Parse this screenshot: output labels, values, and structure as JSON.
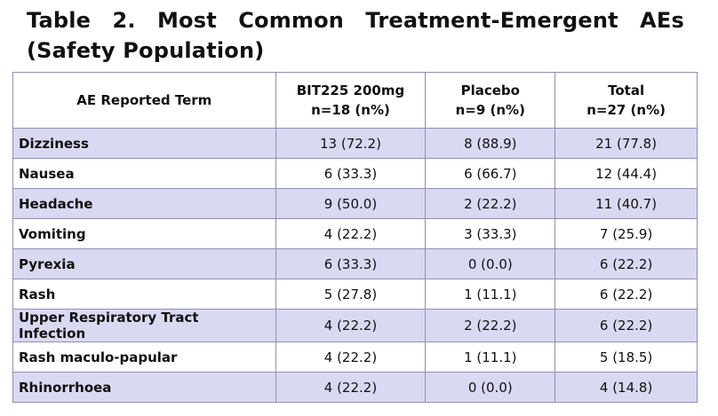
{
  "title": "Table 2.  Most Common Treatment-Emergent AEs (Safety Population)",
  "table": {
    "headers": [
      {
        "line1": "AE Reported Term",
        "line2": ""
      },
      {
        "line1": "BIT225 200mg",
        "line2": "n=18 (n%)"
      },
      {
        "line1": "Placebo",
        "line2": "n=9 (n%)"
      },
      {
        "line1": "Total",
        "line2": "n=27 (n%)"
      }
    ],
    "rows": [
      {
        "term": "Dizziness",
        "bit225": "13 (72.2)",
        "placebo": "8 (88.9)",
        "total": "21 (77.8)"
      },
      {
        "term": "Nausea",
        "bit225": "6 (33.3)",
        "placebo": "6 (66.7)",
        "total": "12 (44.4)"
      },
      {
        "term": "Headache",
        "bit225": "9 (50.0)",
        "placebo": "2 (22.2)",
        "total": "11 (40.7)"
      },
      {
        "term": "Vomiting",
        "bit225": "4 (22.2)",
        "placebo": "3 (33.3)",
        "total": "7 (25.9)"
      },
      {
        "term": "Pyrexia",
        "bit225": "6 (33.3)",
        "placebo": "0 (0.0)",
        "total": "6 (22.2)"
      },
      {
        "term": "Rash",
        "bit225": "5 (27.8)",
        "placebo": "1 (11.1)",
        "total": "6 (22.2)"
      },
      {
        "term": "Upper Respiratory Tract Infection",
        "bit225": "4 (22.2)",
        "placebo": "2 (22.2)",
        "total": "6 (22.2)"
      },
      {
        "term": "Rash maculo-papular",
        "bit225": "4 (22.2)",
        "placebo": "1 (11.1)",
        "total": "5 (18.5)"
      },
      {
        "term": "Rhinorrhoea",
        "bit225": "4 (22.2)",
        "placebo": "0 (0.0)",
        "total": "4 (14.8)"
      }
    ]
  },
  "colors": {
    "shaded_row": "#d9d9f2",
    "border": "#8f8fb5"
  }
}
